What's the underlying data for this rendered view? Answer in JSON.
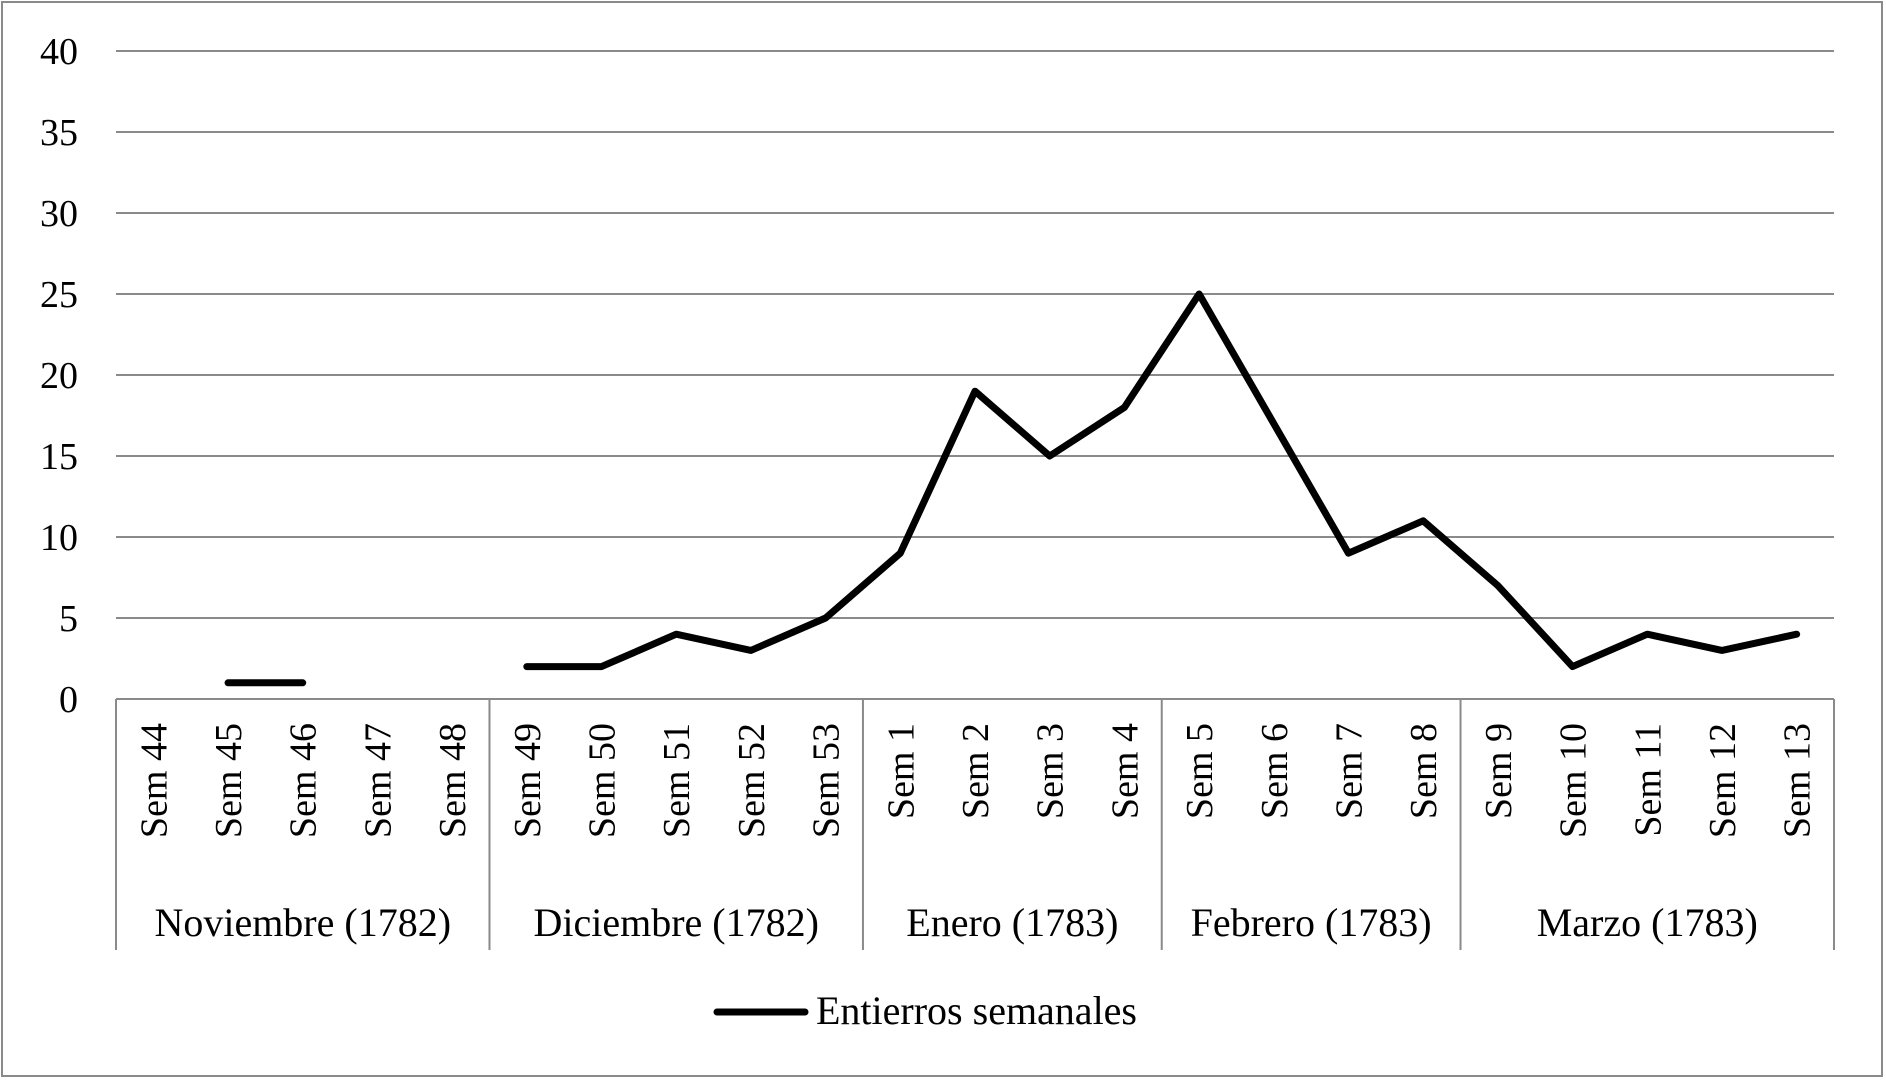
{
  "chart_data": {
    "type": "line",
    "categories": [
      "Sem 44",
      "Sem 45",
      "Sem 46",
      "Sem 47",
      "Sem 48",
      "Sem 49",
      "Sem 50",
      "Sem 51",
      "Sem 52",
      "Sem 53",
      "Sem 1",
      "Sem 2",
      "Sem 3",
      "Sem 4",
      "Sem 5",
      "Sem 6",
      "Sem 7",
      "Sem 8",
      "Sem 9",
      "Sem 10",
      "Sem 11",
      "Sem 12",
      "Sem 13"
    ],
    "groups": [
      {
        "label": "Noviembre (1782)",
        "count": 5
      },
      {
        "label": "Diciembre (1782)",
        "count": 5
      },
      {
        "label": "Enero (1783)",
        "count": 4
      },
      {
        "label": "Febrero (1783)",
        "count": 4
      },
      {
        "label": "Marzo (1783)",
        "count": 5
      }
    ],
    "series": [
      {
        "name": "Entierros semanales",
        "color": "#000000",
        "values": [
          null,
          1,
          1,
          null,
          null,
          2,
          2,
          4,
          3,
          5,
          9,
          19,
          15,
          18,
          25,
          17,
          9,
          11,
          7,
          2,
          4,
          3,
          4
        ]
      }
    ],
    "yticks": [
      "0",
      "5",
      "10",
      "15",
      "20",
      "25",
      "30",
      "35",
      "40"
    ],
    "ylim": [
      0,
      40
    ],
    "grid": true,
    "legend_position": "bottom"
  }
}
